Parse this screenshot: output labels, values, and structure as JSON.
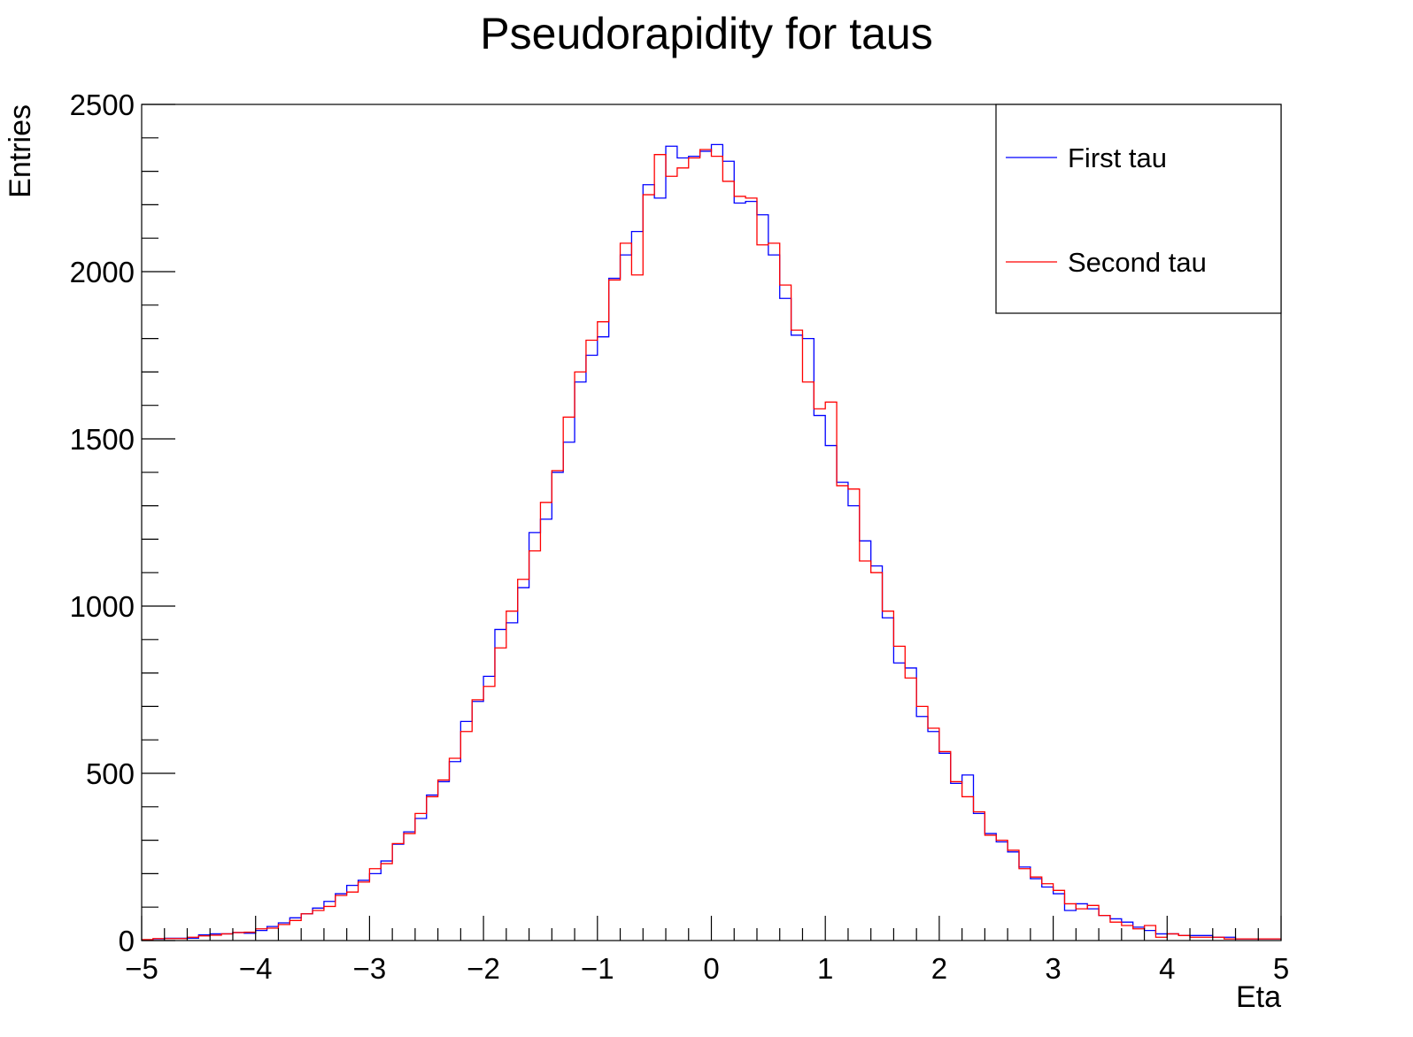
{
  "chart_data": {
    "type": "histogram",
    "title": "Pseudorapidity for taus",
    "xlabel": "Eta",
    "ylabel": "Entries",
    "xlim": [
      -5,
      5
    ],
    "ylim": [
      0,
      2500
    ],
    "x_ticks": [
      -5,
      -4,
      -3,
      -2,
      -1,
      0,
      1,
      2,
      3,
      4,
      5
    ],
    "x_tick_labels": [
      "−5",
      "−4",
      "−3",
      "−2",
      "−1",
      "0",
      "1",
      "2",
      "3",
      "4",
      "5"
    ],
    "y_ticks": [
      0,
      500,
      1000,
      1500,
      2000,
      2500
    ],
    "y_tick_labels": [
      "0",
      "500",
      "1000",
      "1500",
      "2000",
      "2500"
    ],
    "bins": 100,
    "bin_range": [
      -5,
      5
    ],
    "legend_position": "top-right",
    "grid": false,
    "series": [
      {
        "name": "First tau",
        "color": "#0000ff",
        "values": [
          2,
          5,
          7,
          7,
          7,
          17,
          20,
          20,
          24,
          22,
          30,
          42,
          53,
          68,
          80,
          97,
          117,
          140,
          165,
          180,
          200,
          238,
          288,
          325,
          365,
          435,
          475,
          535,
          655,
          715,
          790,
          930,
          950,
          1055,
          1220,
          1260,
          1400,
          1490,
          1670,
          1750,
          1805,
          1980,
          2050,
          2120,
          2260,
          2220,
          2375,
          2340,
          2345,
          2360,
          2380,
          2330,
          2205,
          2210,
          2170,
          2050,
          1920,
          1810,
          1800,
          1570,
          1480,
          1370,
          1300,
          1195,
          1120,
          965,
          830,
          815,
          670,
          625,
          560,
          470,
          495,
          380,
          320,
          295,
          265,
          220,
          185,
          160,
          140,
          90,
          110,
          95,
          75,
          65,
          55,
          40,
          30,
          20,
          20,
          15,
          15,
          15,
          10,
          10,
          5,
          5,
          5,
          5
        ]
      },
      {
        "name": "Second tau",
        "color": "#ff0000",
        "values": [
          3,
          6,
          6,
          6,
          10,
          14,
          16,
          20,
          24,
          25,
          35,
          37,
          48,
          60,
          80,
          90,
          102,
          135,
          145,
          175,
          215,
          230,
          290,
          320,
          380,
          430,
          480,
          545,
          625,
          720,
          760,
          875,
          985,
          1080,
          1165,
          1310,
          1405,
          1565,
          1700,
          1795,
          1850,
          1975,
          2085,
          1990,
          2230,
          2350,
          2285,
          2310,
          2340,
          2365,
          2345,
          2270,
          2225,
          2220,
          2080,
          2085,
          1960,
          1825,
          1670,
          1590,
          1610,
          1360,
          1350,
          1135,
          1100,
          985,
          880,
          785,
          700,
          635,
          565,
          475,
          430,
          385,
          315,
          300,
          270,
          215,
          190,
          170,
          150,
          110,
          95,
          105,
          75,
          55,
          45,
          35,
          45,
          10,
          20,
          15,
          10,
          10,
          10,
          5,
          5,
          5,
          5,
          5
        ]
      }
    ]
  }
}
